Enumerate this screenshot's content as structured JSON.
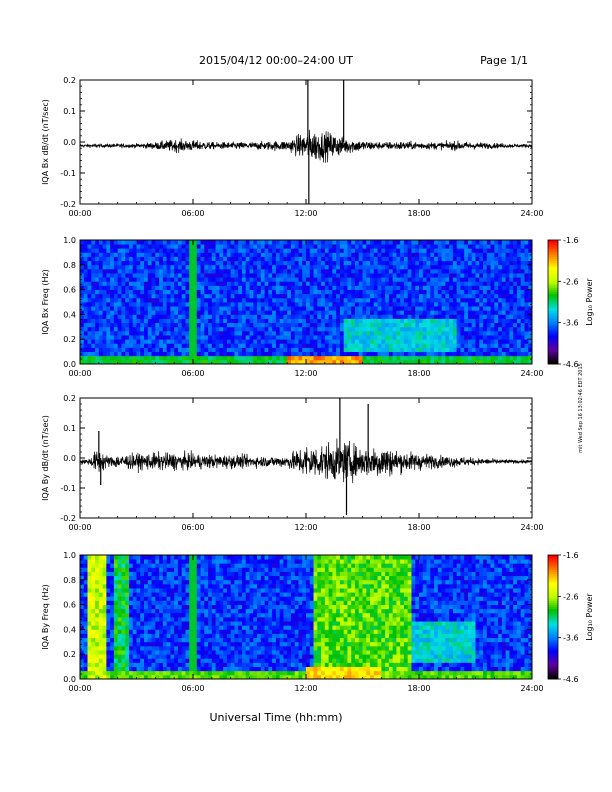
{
  "header": {
    "title": "2015/04/12  00:00–24:00 UT",
    "page": "Page 1/1"
  },
  "footer": {
    "xlabel": "Universal Time (hh:mm)",
    "stamp": "mit Wed Sep 16 13:02:46 EDT 2015"
  },
  "colors": {
    "trace": "#000000",
    "colormap": [
      "#000000",
      "#6000a0",
      "#0000ff",
      "#0080ff",
      "#00e0e0",
      "#00c000",
      "#c0ff00",
      "#ffff00",
      "#ff8000",
      "#ff0000"
    ]
  },
  "chart_data": [
    {
      "type": "line",
      "ylabel": "IQA Bx dB/dt (nT/sec)",
      "xlim": [
        0,
        24
      ],
      "ylim": [
        -0.2,
        0.2
      ],
      "xticks": [
        "00:00",
        "06:00",
        "12:00",
        "18:00",
        "24:00"
      ],
      "yticks": [
        "-0.2",
        "-0.1",
        "0.0",
        "0.1",
        "0.2"
      ],
      "envelope": {
        "hours": [
          0,
          1,
          2,
          3,
          4,
          5,
          6,
          7,
          8,
          9,
          10,
          11,
          12,
          12.5,
          13,
          13.5,
          14,
          15,
          16,
          17,
          18,
          19,
          20,
          21,
          22,
          23,
          24
        ],
        "amplitude": [
          0.01,
          0.01,
          0.012,
          0.012,
          0.02,
          0.035,
          0.03,
          0.02,
          0.02,
          0.02,
          0.025,
          0.03,
          0.08,
          0.09,
          0.08,
          0.07,
          0.05,
          0.03,
          0.02,
          0.025,
          0.02,
          0.02,
          0.025,
          0.02,
          0.015,
          0.01,
          0.01
        ]
      },
      "spikes": [
        {
          "hour": 12.1,
          "value": 0.2
        },
        {
          "hour": 12.15,
          "value": -0.2
        },
        {
          "hour": 14.0,
          "value": 0.2
        }
      ]
    },
    {
      "type": "heatmap",
      "ylabel": "IQA Bx Freq (Hz)",
      "xlim": [
        0,
        24
      ],
      "ylim": [
        0,
        1.0
      ],
      "xticks": [
        "00:00",
        "06:00",
        "12:00",
        "18:00",
        "24:00"
      ],
      "yticks": [
        "0.0",
        "0.2",
        "0.4",
        "0.6",
        "0.8",
        "1.0"
      ],
      "colorbar": {
        "label": "Log₁₀ Power",
        "range": [
          -4.6,
          -1.6
        ],
        "ticks": [
          "-1.6",
          "-2.6",
          "-3.6",
          "-4.6"
        ]
      },
      "features": [
        {
          "type": "band",
          "from_hour": 0,
          "to_hour": 24,
          "freq_max": 0.05,
          "level": -3.0
        },
        {
          "type": "blob",
          "from_hour": 11,
          "to_hour": 15,
          "freq_max": 0.08,
          "level": -2.0
        },
        {
          "type": "blob",
          "from_hour": 14,
          "to_hour": 20,
          "freq_min": 0.1,
          "freq_max": 0.35,
          "level": -3.3
        },
        {
          "type": "line",
          "hour": 6.0,
          "level": -3.0
        }
      ]
    },
    {
      "type": "line",
      "ylabel": "IQA By dB/dt (nT/sec)",
      "xlim": [
        0,
        24
      ],
      "ylim": [
        -0.2,
        0.2
      ],
      "xticks": [
        "00:00",
        "06:00",
        "12:00",
        "18:00",
        "24:00"
      ],
      "yticks": [
        "-0.2",
        "-0.1",
        "0.0",
        "0.1",
        "0.2"
      ],
      "envelope": {
        "hours": [
          0,
          0.5,
          1,
          1.5,
          2,
          3,
          4,
          5,
          6,
          7,
          8,
          9,
          10,
          11,
          12,
          12.5,
          13,
          14,
          15,
          16,
          17,
          18,
          19,
          20,
          21,
          22,
          23,
          24
        ],
        "amplitude": [
          0.01,
          0.02,
          0.08,
          0.03,
          0.04,
          0.045,
          0.05,
          0.05,
          0.045,
          0.04,
          0.04,
          0.035,
          0.03,
          0.035,
          0.1,
          0.09,
          0.1,
          0.12,
          0.08,
          0.1,
          0.06,
          0.05,
          0.035,
          0.03,
          0.02,
          0.015,
          0.01,
          0.01
        ]
      },
      "spikes": [
        {
          "hour": 1.0,
          "value": 0.09
        },
        {
          "hour": 1.1,
          "value": -0.09
        },
        {
          "hour": 13.8,
          "value": 0.2
        },
        {
          "hour": 14.15,
          "value": -0.19
        },
        {
          "hour": 15.3,
          "value": 0.18
        }
      ]
    },
    {
      "type": "heatmap",
      "ylabel": "IQA By Freq (Hz)",
      "xlim": [
        0,
        24
      ],
      "ylim": [
        0,
        1.0
      ],
      "xticks": [
        "00:00",
        "06:00",
        "12:00",
        "18:00",
        "24:00"
      ],
      "yticks": [
        "0.0",
        "0.2",
        "0.4",
        "0.6",
        "0.8",
        "1.0"
      ],
      "colorbar": {
        "label": "Log₁₀ Power",
        "range": [
          -4.6,
          -1.6
        ],
        "ticks": [
          "-1.6",
          "-2.6",
          "-3.6",
          "-4.6"
        ]
      },
      "features": [
        {
          "type": "band",
          "from_hour": 0,
          "to_hour": 24,
          "freq_max": 0.05,
          "level": -2.8
        },
        {
          "type": "column",
          "from_hour": 0.5,
          "to_hour": 1.3,
          "level": -2.5
        },
        {
          "type": "column",
          "from_hour": 1.9,
          "to_hour": 2.5,
          "level": -3.0
        },
        {
          "type": "column",
          "from_hour": 12.5,
          "to_hour": 17.5,
          "level": -2.8
        },
        {
          "type": "blob",
          "from_hour": 12,
          "to_hour": 16,
          "freq_max": 0.1,
          "level": -2.2
        },
        {
          "type": "blob",
          "from_hour": 17,
          "to_hour": 21,
          "freq_min": 0.15,
          "freq_max": 0.45,
          "level": -3.3
        },
        {
          "type": "line",
          "hour": 6.0,
          "level": -3.0
        }
      ]
    }
  ]
}
